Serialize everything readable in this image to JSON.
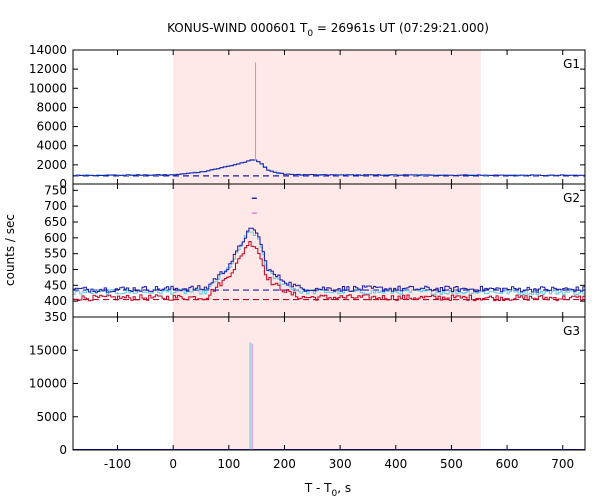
{
  "chart_data": {
    "type": "line",
    "title": "KONUS-WIND 000601 T",
    "title_sub": "0",
    "title_rest": " = 26961s UT (07:29:21.000)",
    "xlabel": "T - T",
    "xlabel_sub": "0",
    "xlabel_rest": ", s",
    "ylabel": "counts / sec",
    "xlim": [
      -180,
      740
    ],
    "xticks": [
      -100,
      0,
      100,
      200,
      300,
      400,
      500,
      600,
      700
    ],
    "xtick_labels": [
      "-100",
      "0",
      "100",
      "200",
      "300",
      "400",
      "500",
      "600",
      "700"
    ],
    "shaded_interval": [
      0,
      553
    ],
    "colors": {
      "shade": "#ffe8e8",
      "blue": "#1a1aa6",
      "cyan": "#5ecbe0",
      "red": "#c00020",
      "pink": "#e080c8",
      "background_dashed": "#1a1aa6",
      "background_dashed_red": "#c00020"
    },
    "panels": [
      {
        "name": "G1",
        "ylim": [
          0,
          14000
        ],
        "yticks": [
          0,
          2000,
          4000,
          6000,
          8000,
          10000,
          12000,
          14000
        ],
        "ytick_labels": [
          "0",
          "2000",
          "4000",
          "6000",
          "8000",
          "10000",
          "12000",
          "14000"
        ],
        "background_level": 850,
        "profile_points": [
          [
            -180,
            900
          ],
          [
            0,
            950
          ],
          [
            50,
            1250
          ],
          [
            80,
            1600
          ],
          [
            110,
            2000
          ],
          [
            130,
            2300
          ],
          [
            145,
            2550
          ],
          [
            155,
            2300
          ],
          [
            170,
            1500
          ],
          [
            190,
            1100
          ],
          [
            230,
            950
          ],
          [
            740,
            900
          ]
        ],
        "spike": {
          "x": 148,
          "y": 12700,
          "color": "pink"
        }
      },
      {
        "name": "G2",
        "ylim": [
          350,
          770
        ],
        "yticks": [
          350,
          400,
          450,
          500,
          550,
          600,
          650,
          700,
          750
        ],
        "ytick_labels": [
          "350",
          "400",
          "450",
          "500",
          "550",
          "600",
          "650",
          "700",
          "750"
        ],
        "background_level_blue": 435,
        "background_level_red": 405,
        "blue_points": [
          [
            -180,
            437
          ],
          [
            60,
            440
          ],
          [
            75,
            470
          ],
          [
            95,
            500
          ],
          [
            110,
            540
          ],
          [
            122,
            580
          ],
          [
            133,
            615
          ],
          [
            140,
            625
          ],
          [
            150,
            620
          ],
          [
            158,
            580
          ],
          [
            168,
            510
          ],
          [
            180,
            485
          ],
          [
            195,
            470
          ],
          [
            210,
            455
          ],
          [
            230,
            440
          ],
          [
            740,
            437
          ]
        ],
        "red_points": [
          [
            -180,
            410
          ],
          [
            60,
            412
          ],
          [
            75,
            440
          ],
          [
            95,
            470
          ],
          [
            110,
            505
          ],
          [
            122,
            540
          ],
          [
            133,
            580
          ],
          [
            140,
            585
          ],
          [
            150,
            570
          ],
          [
            158,
            535
          ],
          [
            168,
            480
          ],
          [
            180,
            455
          ],
          [
            195,
            440
          ],
          [
            210,
            425
          ],
          [
            230,
            412
          ],
          [
            740,
            410
          ]
        ],
        "cyan_points": [
          [
            -180,
            428
          ],
          [
            60,
            430
          ],
          [
            75,
            460
          ],
          [
            95,
            495
          ],
          [
            110,
            530
          ],
          [
            122,
            575
          ],
          [
            133,
            610
          ],
          [
            142,
            618
          ],
          [
            152,
            605
          ],
          [
            160,
            560
          ],
          [
            170,
            495
          ],
          [
            185,
            470
          ],
          [
            200,
            455
          ],
          [
            230,
            430
          ],
          [
            740,
            428
          ]
        ],
        "spikes": [
          {
            "x": 145,
            "y": 725,
            "color": "blue"
          },
          {
            "x": 145,
            "y": 678,
            "color": "pink"
          }
        ]
      },
      {
        "name": "G3",
        "ylim": [
          0,
          20000
        ],
        "yticks": [
          0,
          5000,
          10000,
          15000
        ],
        "ytick_labels": [
          "0",
          "5000",
          "10000",
          "15000"
        ],
        "background_level": 80,
        "spikes": [
          {
            "x": 140,
            "y": 16200,
            "color": "cyan"
          },
          {
            "x": 140,
            "y": 16000,
            "color": "pink"
          }
        ]
      }
    ]
  }
}
